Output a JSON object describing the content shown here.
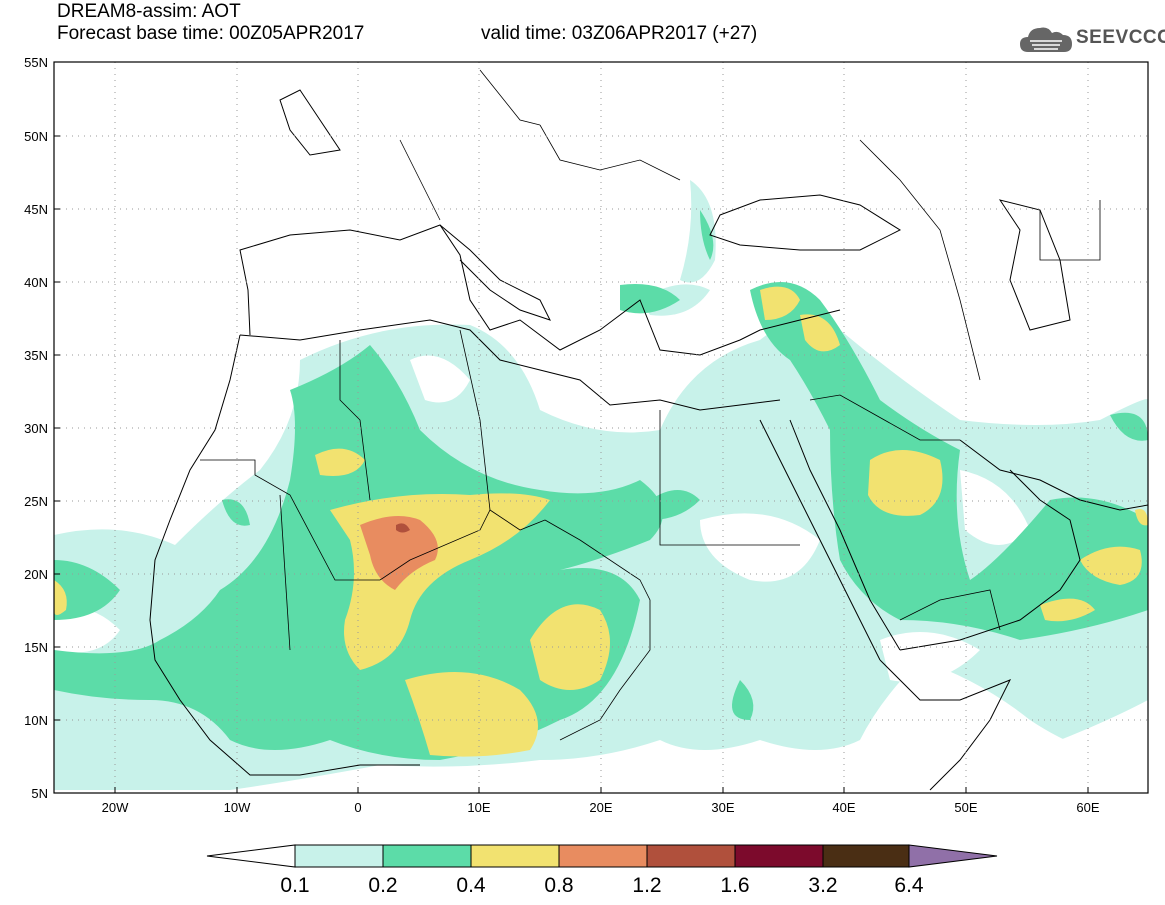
{
  "header": {
    "title": "DREAM8-assim: AOT",
    "base_time": "Forecast base time: 00Z05APR2017",
    "valid_time": "valid time: 03Z06APR2017 (+27)",
    "logo_text": "SEEVCCC",
    "logo_icon": "cloud-icon"
  },
  "map": {
    "lat_labels": [
      "55N",
      "50N",
      "45N",
      "40N",
      "35N",
      "30N",
      "25N",
      "20N",
      "15N",
      "10N",
      "5N"
    ],
    "lon_labels": [
      "20W",
      "10W",
      "0",
      "10E",
      "20E",
      "30E",
      "40E",
      "50E",
      "60E"
    ],
    "lon_range": [
      -25,
      65
    ],
    "lat_range": [
      5,
      55
    ]
  },
  "colorbar": {
    "labels": [
      "0.1",
      "0.2",
      "0.4",
      "0.8",
      "1.2",
      "1.6",
      "3.2",
      "6.4"
    ],
    "colors": [
      "#c8f2ea",
      "#5cdca8",
      "#f2e270",
      "#e88c60",
      "#b0503c",
      "#7c0a2c",
      "#4a2e14",
      "#9070a8"
    ]
  },
  "colors": {
    "level1": "#c8f2ea",
    "level2": "#5cdca8",
    "level3": "#f2e270",
    "level4": "#e88c60",
    "level5": "#b0503c"
  }
}
